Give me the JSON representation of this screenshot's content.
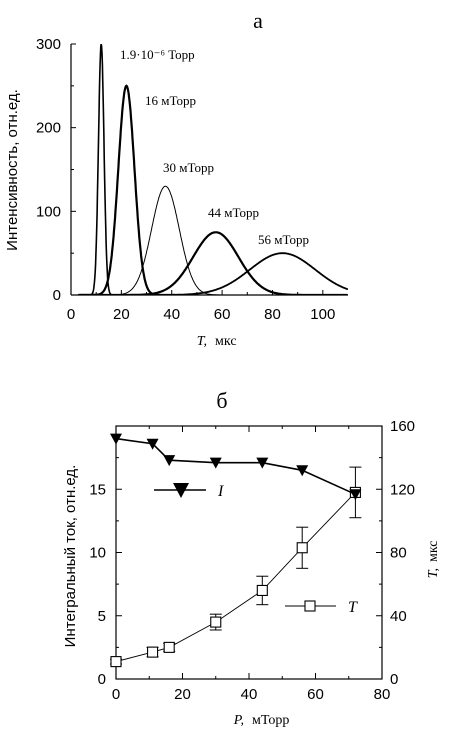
{
  "chart_data": [
    {
      "panel_label": "а",
      "type": "line",
      "xlabel": "T,",
      "xunit": "мкс",
      "ylabel": "Интенсивность, отн.ед.",
      "xlim": [
        0,
        110
      ],
      "ylim": [
        0,
        300
      ],
      "xticks": [
        "0",
        "20",
        "40",
        "60",
        "80",
        "100"
      ],
      "yticks": [
        "0",
        "100",
        "200",
        "300"
      ],
      "series": [
        {
          "name": "1.9·10⁻⁶ Торр",
          "peak_x": 12,
          "peak_y": 300,
          "width": 1.1,
          "stroke": 1.6
        },
        {
          "name": "16 мТорр",
          "peak_x": 22,
          "peak_y": 250,
          "width": 3.2,
          "stroke": 2.2
        },
        {
          "name": "30 мТорр",
          "peak_x": 37.5,
          "peak_y": 130,
          "width": 5.5,
          "stroke": 1.0
        },
        {
          "name": "44 мТорр",
          "peak_x": 57.5,
          "peak_y": 75,
          "width": 9,
          "stroke": 2.2
        },
        {
          "name": "56 мТорр",
          "peak_x": 84,
          "peak_y": 50,
          "width": 13,
          "stroke": 1.8
        }
      ]
    },
    {
      "panel_label": "б",
      "type": "line",
      "xlabel": "P,",
      "xunit": "мТорр",
      "ylabel": "Интегральный ток, отн.ед.",
      "ylabel_right": "T,",
      "yunit_right": "мкс",
      "xlim": [
        0,
        80
      ],
      "ylim": [
        0,
        20
      ],
      "ylim_right": [
        0,
        160
      ],
      "xticks": [
        "0",
        "20",
        "40",
        "60",
        "80"
      ],
      "yticks": [
        "0",
        "5",
        "10",
        "15"
      ],
      "yticks_right": [
        "0",
        "40",
        "80",
        "120",
        "160"
      ],
      "series": [
        {
          "name": "I",
          "axis": "left",
          "marker": "filled-triangle-down",
          "x": [
            0,
            11,
            16,
            30,
            44,
            56,
            72
          ],
          "y": [
            19,
            18.6,
            17.3,
            17.1,
            17.1,
            16.5,
            14.6
          ]
        },
        {
          "name": "T",
          "axis": "right",
          "marker": "open-square",
          "x": [
            0,
            11,
            16,
            30,
            44,
            56,
            72
          ],
          "y": [
            11,
            17,
            20,
            36,
            56,
            83,
            118
          ],
          "err": [
            1.5,
            3,
            2.5,
            5,
            9,
            13,
            16
          ]
        }
      ]
    }
  ]
}
